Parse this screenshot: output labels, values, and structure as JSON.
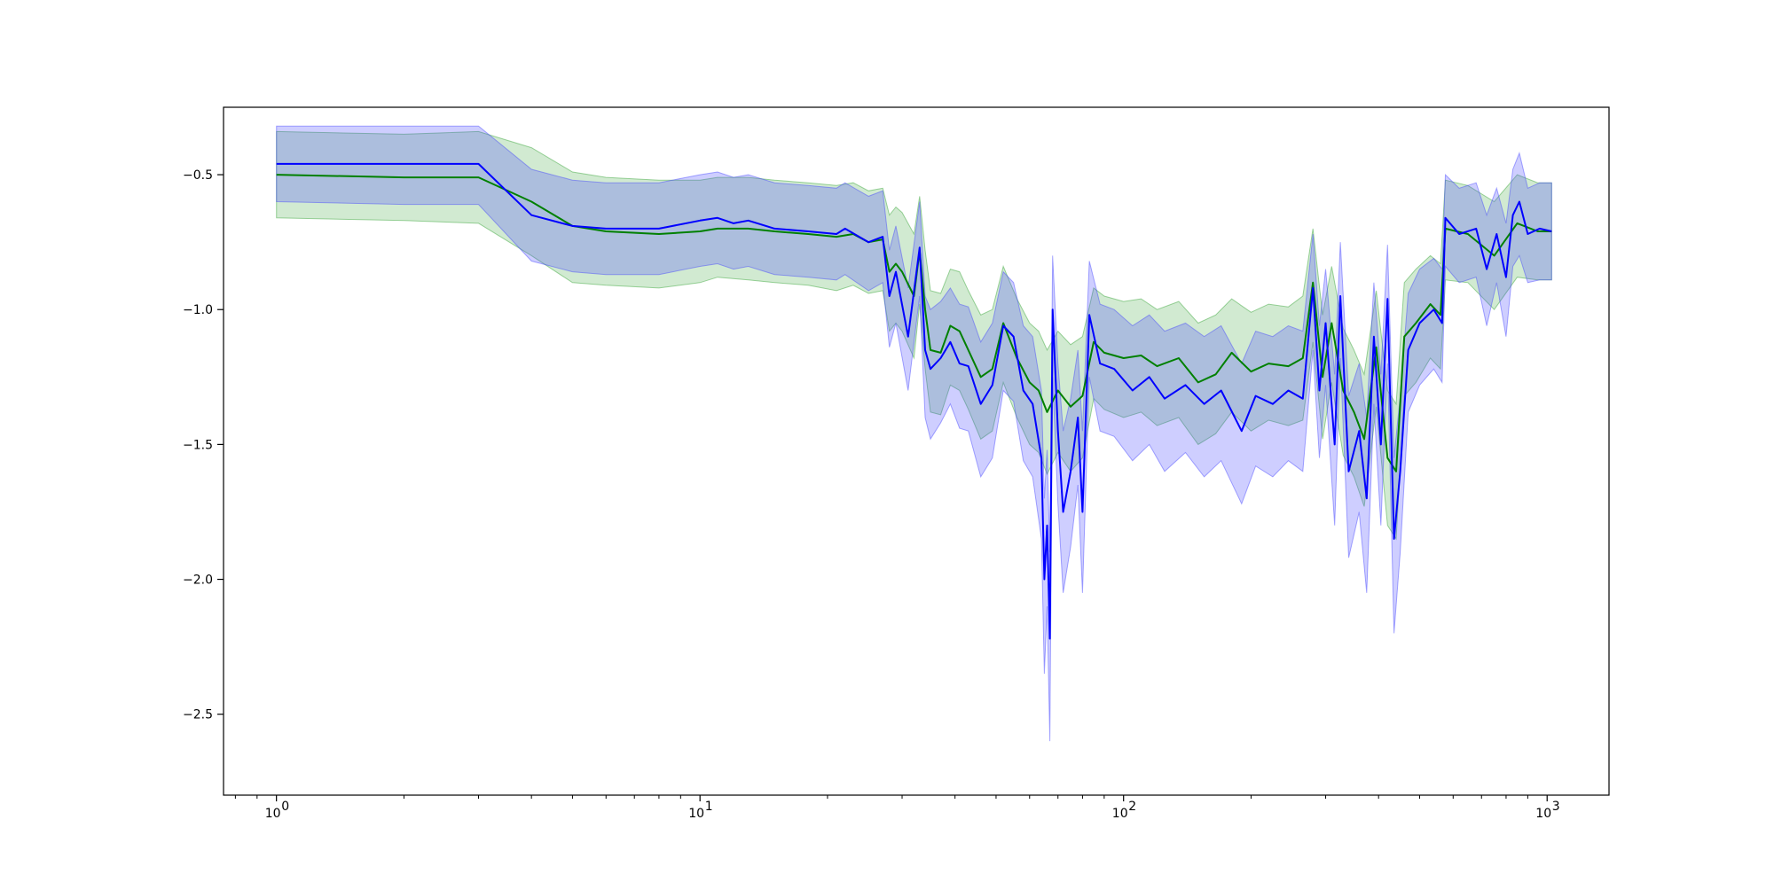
{
  "chart_data": {
    "type": "line",
    "x_scale": "log",
    "xlim": [
      0.75,
      1400
    ],
    "ylim": [
      -2.8,
      -0.25
    ],
    "grid": false,
    "title": "",
    "xlabel": "",
    "ylabel": "",
    "x_ticks": [
      {
        "value": 1,
        "label": "10",
        "exp": "0"
      },
      {
        "value": 10,
        "label": "10",
        "exp": "1"
      },
      {
        "value": 100,
        "label": "10",
        "exp": "2"
      },
      {
        "value": 1000,
        "label": "10",
        "exp": "3"
      }
    ],
    "y_ticks": [
      {
        "value": -0.5,
        "label": "−0.5"
      },
      {
        "value": -1.0,
        "label": "−1.0"
      },
      {
        "value": -1.5,
        "label": "−1.5"
      },
      {
        "value": -2.0,
        "label": "−2.0"
      },
      {
        "value": -2.5,
        "label": "−2.5"
      }
    ],
    "series": [
      {
        "color": "#008000",
        "band_color": "#2ca02c",
        "band_opacity": 0.22,
        "points": [
          [
            1,
            -0.5,
            -0.34,
            -0.66
          ],
          [
            2,
            -0.51,
            -0.35,
            -0.67
          ],
          [
            3,
            -0.51,
            -0.34,
            -0.68
          ],
          [
            4,
            -0.6,
            -0.4,
            -0.8
          ],
          [
            5,
            -0.69,
            -0.49,
            -0.9
          ],
          [
            6,
            -0.71,
            -0.51,
            -0.91
          ],
          [
            8,
            -0.72,
            -0.52,
            -0.92
          ],
          [
            10,
            -0.71,
            -0.52,
            -0.9
          ],
          [
            11,
            -0.7,
            -0.51,
            -0.88
          ],
          [
            13,
            -0.7,
            -0.51,
            -0.89
          ],
          [
            15,
            -0.71,
            -0.52,
            -0.9
          ],
          [
            18,
            -0.72,
            -0.53,
            -0.91
          ],
          [
            21,
            -0.73,
            -0.54,
            -0.93
          ],
          [
            23,
            -0.72,
            -0.53,
            -0.91
          ],
          [
            25,
            -0.75,
            -0.56,
            -0.94
          ],
          [
            27,
            -0.74,
            -0.55,
            -0.93
          ],
          [
            28,
            -0.86,
            -0.65,
            -1.08
          ],
          [
            29,
            -0.83,
            -0.62,
            -1.05
          ],
          [
            30,
            -0.86,
            -0.64,
            -1.08
          ],
          [
            32,
            -0.95,
            -0.72,
            -1.18
          ],
          [
            33,
            -0.78,
            -0.58,
            -0.98
          ],
          [
            34,
            -1.0,
            -0.78,
            -1.22
          ],
          [
            35,
            -1.15,
            -0.93,
            -1.38
          ],
          [
            37,
            -1.16,
            -0.94,
            -1.39
          ],
          [
            39,
            -1.06,
            -0.85,
            -1.28
          ],
          [
            41,
            -1.08,
            -0.86,
            -1.3
          ],
          [
            43,
            -1.15,
            -0.93,
            -1.37
          ],
          [
            46,
            -1.25,
            -1.02,
            -1.48
          ],
          [
            49,
            -1.22,
            -1.0,
            -1.45
          ],
          [
            52,
            -1.05,
            -0.84,
            -1.27
          ],
          [
            56,
            -1.18,
            -0.96,
            -1.4
          ],
          [
            60,
            -1.27,
            -1.05,
            -1.5
          ],
          [
            63,
            -1.3,
            -1.08,
            -1.53
          ],
          [
            66,
            -1.38,
            -1.15,
            -1.61
          ],
          [
            70,
            -1.3,
            -1.08,
            -1.53
          ],
          [
            75,
            -1.36,
            -1.13,
            -1.6
          ],
          [
            80,
            -1.32,
            -1.1,
            -1.55
          ],
          [
            85,
            -1.12,
            -0.92,
            -1.33
          ],
          [
            90,
            -1.16,
            -0.95,
            -1.37
          ],
          [
            100,
            -1.18,
            -0.97,
            -1.4
          ],
          [
            110,
            -1.17,
            -0.96,
            -1.38
          ],
          [
            120,
            -1.21,
            -1.0,
            -1.43
          ],
          [
            135,
            -1.18,
            -0.97,
            -1.4
          ],
          [
            150,
            -1.27,
            -1.05,
            -1.5
          ],
          [
            165,
            -1.24,
            -1.02,
            -1.46
          ],
          [
            180,
            -1.16,
            -0.96,
            -1.38
          ],
          [
            200,
            -1.23,
            -1.01,
            -1.45
          ],
          [
            220,
            -1.2,
            -0.98,
            -1.41
          ],
          [
            245,
            -1.21,
            -0.99,
            -1.43
          ],
          [
            265,
            -1.18,
            -0.95,
            -1.41
          ],
          [
            280,
            -0.9,
            -0.7,
            -1.12
          ],
          [
            295,
            -1.25,
            -1.02,
            -1.48
          ],
          [
            310,
            -1.05,
            -0.84,
            -1.27
          ],
          [
            330,
            -1.3,
            -1.07,
            -1.54
          ],
          [
            350,
            -1.38,
            -1.15,
            -1.62
          ],
          [
            370,
            -1.48,
            -1.24,
            -1.73
          ],
          [
            395,
            -1.14,
            -0.93,
            -1.36
          ],
          [
            420,
            -1.55,
            -1.3,
            -1.8
          ],
          [
            440,
            -1.6,
            -1.35,
            -1.85
          ],
          [
            460,
            -1.1,
            -0.9,
            -1.32
          ],
          [
            490,
            -1.05,
            -0.85,
            -1.27
          ],
          [
            530,
            -0.98,
            -0.8,
            -1.18
          ],
          [
            560,
            -1.02,
            -0.83,
            -1.22
          ],
          [
            575,
            -0.7,
            -0.52,
            -0.89
          ],
          [
            650,
            -0.72,
            -0.54,
            -0.9
          ],
          [
            750,
            -0.8,
            -0.6,
            -1.0
          ],
          [
            850,
            -0.68,
            -0.5,
            -0.88
          ],
          [
            950,
            -0.71,
            -0.53,
            -0.89
          ],
          [
            1025,
            -0.71,
            -0.53,
            -0.89
          ]
        ]
      },
      {
        "color": "#0000ff",
        "band_color": "#4040ff",
        "band_opacity": 0.26,
        "points": [
          [
            1,
            -0.46,
            -0.32,
            -0.6
          ],
          [
            2,
            -0.46,
            -0.32,
            -0.61
          ],
          [
            3,
            -0.46,
            -0.32,
            -0.61
          ],
          [
            4,
            -0.65,
            -0.48,
            -0.82
          ],
          [
            5,
            -0.69,
            -0.52,
            -0.86
          ],
          [
            6,
            -0.7,
            -0.53,
            -0.87
          ],
          [
            8,
            -0.7,
            -0.53,
            -0.87
          ],
          [
            10,
            -0.67,
            -0.5,
            -0.84
          ],
          [
            11,
            -0.66,
            -0.49,
            -0.83
          ],
          [
            12,
            -0.68,
            -0.51,
            -0.85
          ],
          [
            13,
            -0.67,
            -0.5,
            -0.84
          ],
          [
            15,
            -0.7,
            -0.53,
            -0.87
          ],
          [
            18,
            -0.71,
            -0.54,
            -0.88
          ],
          [
            21,
            -0.72,
            -0.55,
            -0.89
          ],
          [
            22,
            -0.7,
            -0.53,
            -0.87
          ],
          [
            25,
            -0.75,
            -0.58,
            -0.93
          ],
          [
            27,
            -0.73,
            -0.56,
            -0.9
          ],
          [
            28,
            -0.95,
            -0.78,
            -1.14
          ],
          [
            29,
            -0.86,
            -0.69,
            -1.05
          ],
          [
            31,
            -1.1,
            -0.92,
            -1.3
          ],
          [
            33,
            -0.77,
            -0.6,
            -0.95
          ],
          [
            34,
            -1.15,
            -0.95,
            -1.4
          ],
          [
            35,
            -1.22,
            -1.0,
            -1.48
          ],
          [
            37,
            -1.18,
            -0.97,
            -1.42
          ],
          [
            39,
            -1.12,
            -0.92,
            -1.35
          ],
          [
            41,
            -1.2,
            -0.98,
            -1.44
          ],
          [
            43,
            -1.21,
            -0.99,
            -1.45
          ],
          [
            46,
            -1.35,
            -1.12,
            -1.62
          ],
          [
            49,
            -1.28,
            -1.05,
            -1.55
          ],
          [
            52,
            -1.06,
            -0.86,
            -1.3
          ],
          [
            55,
            -1.1,
            -0.9,
            -1.34
          ],
          [
            58,
            -1.3,
            -1.06,
            -1.56
          ],
          [
            61,
            -1.35,
            -1.1,
            -1.62
          ],
          [
            64,
            -1.55,
            -1.3,
            -1.85
          ],
          [
            65,
            -2.0,
            -1.7,
            -2.35
          ],
          [
            66,
            -1.8,
            -1.52,
            -2.1
          ],
          [
            67,
            -2.22,
            -1.9,
            -2.6
          ],
          [
            68,
            -1.0,
            -0.8,
            -1.25
          ],
          [
            70,
            -1.45,
            -1.2,
            -1.72
          ],
          [
            72,
            -1.75,
            -1.45,
            -2.05
          ],
          [
            75,
            -1.6,
            -1.33,
            -1.88
          ],
          [
            78,
            -1.4,
            -1.15,
            -1.65
          ],
          [
            80,
            -1.75,
            -1.45,
            -2.05
          ],
          [
            83,
            -1.02,
            -0.82,
            -1.25
          ],
          [
            88,
            -1.2,
            -0.98,
            -1.45
          ],
          [
            95,
            -1.22,
            -1.0,
            -1.47
          ],
          [
            105,
            -1.3,
            -1.06,
            -1.56
          ],
          [
            115,
            -1.25,
            -1.02,
            -1.5
          ],
          [
            125,
            -1.33,
            -1.08,
            -1.6
          ],
          [
            140,
            -1.28,
            -1.05,
            -1.53
          ],
          [
            155,
            -1.35,
            -1.1,
            -1.62
          ],
          [
            170,
            -1.3,
            -1.06,
            -1.56
          ],
          [
            190,
            -1.45,
            -1.2,
            -1.72
          ],
          [
            205,
            -1.32,
            -1.08,
            -1.58
          ],
          [
            225,
            -1.35,
            -1.1,
            -1.62
          ],
          [
            245,
            -1.3,
            -1.06,
            -1.56
          ],
          [
            265,
            -1.33,
            -1.08,
            -1.6
          ],
          [
            280,
            -0.92,
            -0.72,
            -1.15
          ],
          [
            290,
            -1.3,
            -1.06,
            -1.55
          ],
          [
            300,
            -1.05,
            -0.85,
            -1.28
          ],
          [
            315,
            -1.5,
            -1.24,
            -1.8
          ],
          [
            325,
            -0.95,
            -0.75,
            -1.18
          ],
          [
            340,
            -1.6,
            -1.32,
            -1.92
          ],
          [
            360,
            -1.45,
            -1.2,
            -1.75
          ],
          [
            375,
            -1.7,
            -1.4,
            -2.05
          ],
          [
            390,
            -1.1,
            -0.9,
            -1.35
          ],
          [
            405,
            -1.5,
            -1.24,
            -1.8
          ],
          [
            420,
            -0.96,
            -0.76,
            -1.2
          ],
          [
            435,
            -1.85,
            -1.55,
            -2.2
          ],
          [
            450,
            -1.6,
            -1.32,
            -1.9
          ],
          [
            470,
            -1.15,
            -0.94,
            -1.38
          ],
          [
            500,
            -1.05,
            -0.85,
            -1.28
          ],
          [
            540,
            -1.0,
            -0.81,
            -1.22
          ],
          [
            565,
            -1.05,
            -0.85,
            -1.27
          ],
          [
            575,
            -0.66,
            -0.5,
            -0.84
          ],
          [
            620,
            -0.72,
            -0.55,
            -0.9
          ],
          [
            680,
            -0.7,
            -0.53,
            -0.88
          ],
          [
            720,
            -0.85,
            -0.65,
            -1.06
          ],
          [
            760,
            -0.72,
            -0.55,
            -0.9
          ],
          [
            800,
            -0.88,
            -0.68,
            -1.1
          ],
          [
            830,
            -0.65,
            -0.48,
            -0.84
          ],
          [
            860,
            -0.6,
            -0.42,
            -0.8
          ],
          [
            900,
            -0.72,
            -0.55,
            -0.9
          ],
          [
            960,
            -0.7,
            -0.53,
            -0.89
          ],
          [
            1025,
            -0.71,
            -0.53,
            -0.89
          ]
        ]
      }
    ]
  }
}
